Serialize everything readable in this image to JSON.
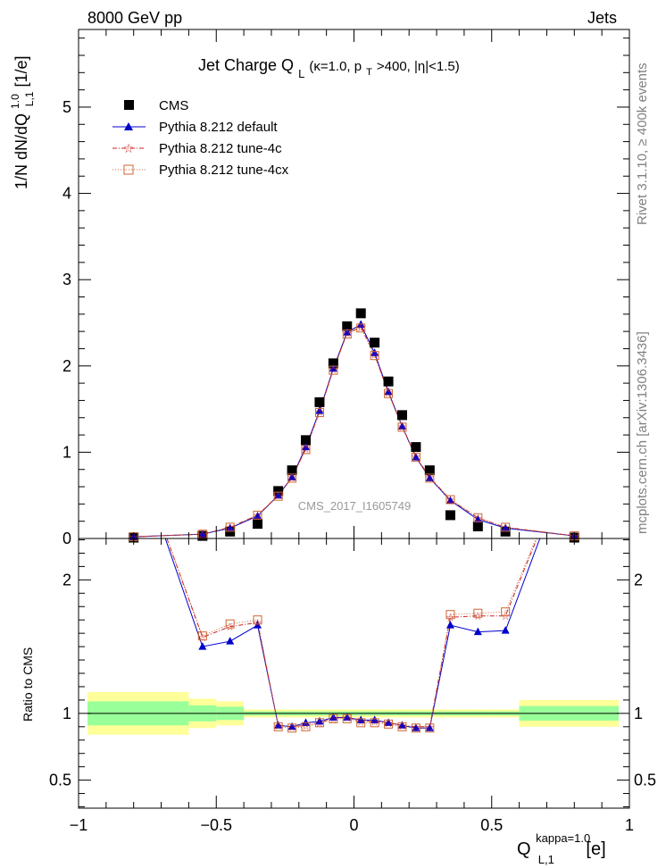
{
  "header": {
    "left": "8000 GeV pp",
    "right": "Jets"
  },
  "side_labels": {
    "rivet": "Rivet 3.1.10, ≥ 400k events",
    "mcplots": "mcplots.cern.ch [arXiv:1306.3436]"
  },
  "watermark": "CMS_2017_I1605749",
  "colors": {
    "cms": "#000000",
    "default": "#0000cc",
    "tune4c": "#cc2222",
    "tune4cx": "#cc6633",
    "band_outer": "#ffff99",
    "band_inner": "#99ff99"
  },
  "chart_data": [
    {
      "type": "scatter",
      "panel": "main",
      "title": {
        "main": "Jet Charge Q",
        "sub_L": "L",
        "opts_a": "(κ=1.0, p",
        "opts_T": "T",
        "opts_b": ">400, |η|<1.5)"
      },
      "ylabel": {
        "a": "1/N dN/dQ",
        "sup": "1.0",
        "sub": "L,1",
        "b": " [1/e]"
      },
      "xlim": [
        -1.0,
        1.0
      ],
      "ylim": [
        0,
        5.9
      ],
      "yticks": [
        0,
        1,
        2,
        3,
        4,
        5
      ],
      "ytick_labels": [
        "0",
        "1",
        "2",
        "3",
        "4",
        "5"
      ],
      "legend_position": "top-left",
      "x": [
        -0.8,
        -0.55,
        -0.45,
        -0.35,
        -0.275,
        -0.225,
        -0.175,
        -0.125,
        -0.075,
        -0.025,
        0.025,
        0.075,
        0.125,
        0.175,
        0.225,
        0.275,
        0.35,
        0.45,
        0.55,
        0.8
      ],
      "series": [
        {
          "name": "CMS",
          "marker": "square",
          "values": [
            0.01,
            0.03,
            0.08,
            0.17,
            0.55,
            0.79,
            1.14,
            1.58,
            2.03,
            2.46,
            2.61,
            2.27,
            1.82,
            1.43,
            1.06,
            0.79,
            0.27,
            0.14,
            0.08,
            0.01
          ]
        },
        {
          "name": "Pythia 8.212 default",
          "marker": "triangle",
          "values": [
            0.02,
            0.05,
            0.12,
            0.26,
            0.5,
            0.71,
            1.06,
            1.48,
            1.97,
            2.39,
            2.48,
            2.15,
            1.7,
            1.3,
            0.94,
            0.7,
            0.44,
            0.22,
            0.12,
            0.03
          ]
        },
        {
          "name": "Pythia 8.212 tune-4c",
          "marker": "star",
          "values": [
            0.02,
            0.05,
            0.13,
            0.27,
            0.5,
            0.71,
            1.04,
            1.47,
            1.96,
            2.38,
            2.45,
            2.13,
            1.69,
            1.3,
            0.95,
            0.71,
            0.45,
            0.24,
            0.13,
            0.03
          ]
        },
        {
          "name": "Pythia 8.212 tune-4cx",
          "marker": "open-square",
          "values": [
            0.02,
            0.05,
            0.13,
            0.27,
            0.49,
            0.7,
            1.03,
            1.46,
            1.95,
            2.37,
            2.44,
            2.12,
            1.68,
            1.29,
            0.94,
            0.7,
            0.45,
            0.24,
            0.13,
            0.03
          ]
        }
      ]
    },
    {
      "type": "line",
      "panel": "ratio",
      "ylabel": "Ratio to CMS",
      "xlabel": {
        "a": "Q",
        "sup": "kappa=1.0",
        "sub": "L,1",
        "b": " [e]"
      },
      "xlim": [
        -1.0,
        1.0
      ],
      "ylim": [
        0.29,
        2.31
      ],
      "xticks": [
        -1,
        -0.5,
        0,
        0.5,
        1
      ],
      "xtick_labels": [
        "−1",
        "−0.5",
        "0",
        "0.5",
        "1"
      ],
      "yticks": [
        0.5,
        1,
        2
      ],
      "ytick_labels": [
        "0.5",
        "1",
        "2"
      ],
      "x": [
        -0.8,
        -0.55,
        -0.45,
        -0.35,
        -0.275,
        -0.225,
        -0.175,
        -0.125,
        -0.075,
        -0.025,
        0.025,
        0.075,
        0.125,
        0.175,
        0.225,
        0.275,
        0.35,
        0.45,
        0.55,
        0.8
      ],
      "band": {
        "x_edges": [
          -1.0,
          -0.6,
          -0.5,
          -0.4,
          -0.3,
          -0.25,
          -0.2,
          -0.15,
          -0.1,
          -0.05,
          0.0,
          0.05,
          0.1,
          0.15,
          0.2,
          0.25,
          0.3,
          0.4,
          0.5,
          0.6,
          1.0
        ],
        "outer": [
          0.16,
          0.11,
          0.09,
          0.03,
          0.03,
          0.03,
          0.03,
          0.03,
          0.03,
          0.03,
          0.03,
          0.03,
          0.03,
          0.03,
          0.03,
          0.03,
          0.03,
          0.03,
          0.03,
          0.1
        ],
        "inner": [
          0.09,
          0.06,
          0.05,
          0.015,
          0.015,
          0.015,
          0.015,
          0.015,
          0.015,
          0.015,
          0.015,
          0.015,
          0.015,
          0.015,
          0.015,
          0.015,
          0.015,
          0.015,
          0.015,
          0.055
        ]
      },
      "series": [
        {
          "name": "Pythia 8.212 default",
          "values": [
            3.0,
            1.5,
            1.54,
            1.66,
            0.91,
            0.9,
            0.93,
            0.94,
            0.97,
            0.97,
            0.95,
            0.95,
            0.93,
            0.91,
            0.89,
            0.89,
            1.66,
            1.61,
            1.62,
            3.0
          ]
        },
        {
          "name": "Pythia 8.212 tune-4c",
          "values": [
            3.0,
            1.57,
            1.65,
            1.68,
            0.91,
            0.9,
            0.91,
            0.93,
            0.96,
            0.97,
            0.94,
            0.94,
            0.93,
            0.91,
            0.9,
            0.9,
            1.72,
            1.73,
            1.73,
            3.0
          ]
        },
        {
          "name": "Pythia 8.212 tune-4cx",
          "values": [
            3.0,
            1.58,
            1.67,
            1.7,
            0.9,
            0.89,
            0.9,
            0.93,
            0.96,
            0.96,
            0.93,
            0.93,
            0.92,
            0.9,
            0.89,
            0.89,
            1.74,
            1.75,
            1.76,
            3.0
          ]
        }
      ]
    }
  ]
}
